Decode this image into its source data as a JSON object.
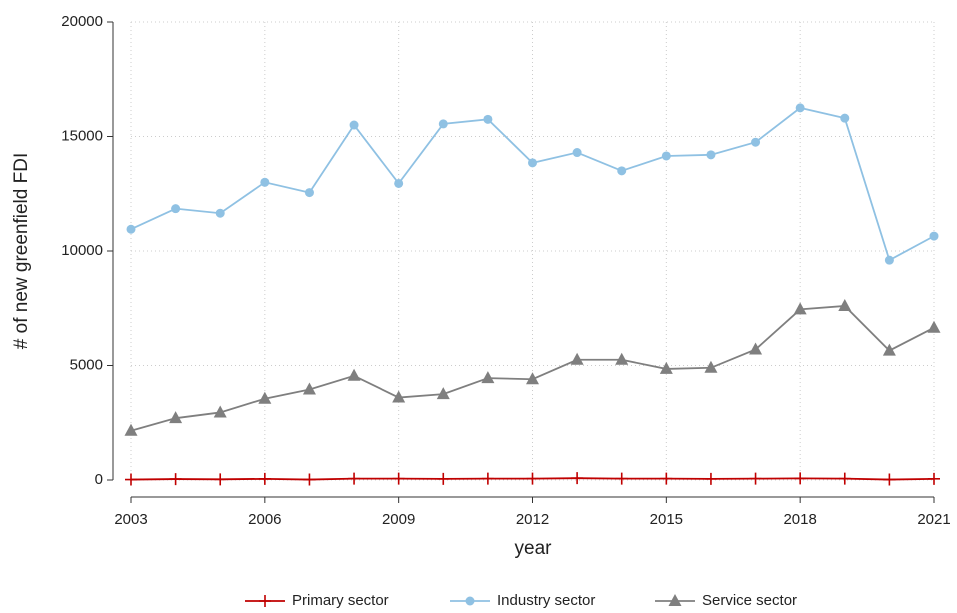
{
  "chart_data": {
    "type": "line",
    "x_label": "year",
    "y_label": "# of new greenfield FDI",
    "x": [
      2003,
      2004,
      2005,
      2006,
      2007,
      2008,
      2009,
      2010,
      2011,
      2012,
      2013,
      2014,
      2015,
      2016,
      2017,
      2018,
      2019,
      2020,
      2021
    ],
    "series": [
      {
        "name": "Primary sector",
        "color": "#c00000",
        "marker": "plus",
        "values": [
          20,
          40,
          30,
          50,
          20,
          60,
          60,
          50,
          60,
          60,
          80,
          60,
          60,
          50,
          60,
          70,
          60,
          20,
          50
        ]
      },
      {
        "name": "Industry sector",
        "color": "#8fc1e3",
        "marker": "circle",
        "values": [
          10950,
          11850,
          11650,
          13000,
          12550,
          15500,
          12950,
          15550,
          15750,
          13850,
          14300,
          13500,
          14150,
          14200,
          14750,
          16250,
          15800,
          9600,
          10650
        ]
      },
      {
        "name": "Service sector",
        "color": "#7f7f7f",
        "marker": "triangle",
        "values": [
          2150,
          2700,
          2950,
          3550,
          3950,
          4550,
          3600,
          3750,
          4450,
          4400,
          5250,
          5250,
          4850,
          4900,
          5700,
          7450,
          7600,
          5650,
          6650
        ]
      }
    ],
    "xlim": [
      2003,
      2021
    ],
    "xticks": [
      2003,
      2006,
      2009,
      2012,
      2015,
      2018,
      2021
    ],
    "ylim": [
      0,
      20000
    ],
    "yticks": [
      0,
      5000,
      10000,
      15000,
      20000
    ],
    "grid": true,
    "legend": "bottom"
  }
}
